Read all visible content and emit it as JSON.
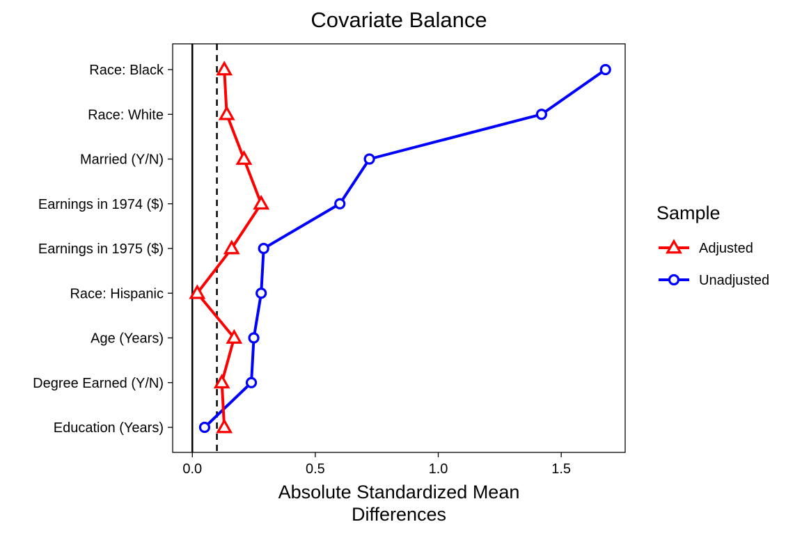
{
  "chart_data": {
    "type": "line",
    "title": "Covariate Balance",
    "xlabel": [
      "Absolute Standardized Mean",
      "Differences"
    ],
    "ylabel": "",
    "xlim": [
      -0.08,
      1.76
    ],
    "xticks": [
      0,
      0.5,
      1,
      1.5
    ],
    "xtick_labels": [
      "0.0",
      "0.5",
      "1.0",
      "1.5"
    ],
    "categories": [
      "Race: Black",
      "Race: White",
      "Married (Y/N)",
      "Earnings in 1974 ($)",
      "Earnings in 1975 ($)",
      "Race: Hispanic",
      "Age (Years)",
      "Degree Earned (Y/N)",
      "Education (Years)"
    ],
    "reference_lines": {
      "solid_x": 0,
      "dashed_x": 0.1
    },
    "legend": {
      "title": "Sample",
      "position": "right"
    },
    "grid": false,
    "series": [
      {
        "name": "Adjusted",
        "color": "#ff0000",
        "marker": "triangle-open",
        "values": [
          0.13,
          0.14,
          0.21,
          0.28,
          0.16,
          0.02,
          0.17,
          0.12,
          0.13
        ]
      },
      {
        "name": "Unadjusted",
        "color": "#0000ff",
        "marker": "circle-open",
        "values": [
          1.68,
          1.42,
          0.72,
          0.6,
          0.29,
          0.28,
          0.25,
          0.24,
          0.05
        ]
      }
    ]
  }
}
